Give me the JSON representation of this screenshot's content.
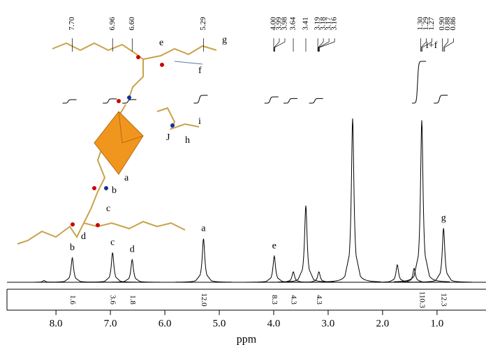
{
  "chart_data": {
    "type": "nmr",
    "x_label": "ppm",
    "xlim": [
      8.9,
      0.1
    ],
    "xticks": [
      {
        "value": 8,
        "label": "8.0"
      },
      {
        "value": 7,
        "label": "7.0"
      },
      {
        "value": 6,
        "label": "6.0"
      },
      {
        "value": 5,
        "label": "5.0"
      },
      {
        "value": 4,
        "label": "4.0"
      },
      {
        "value": 3,
        "label": "3.0"
      },
      {
        "value": 2,
        "label": "2.0"
      },
      {
        "value": 1,
        "label": "1.0"
      }
    ],
    "ylim": [
      0,
      100
    ],
    "color": "#000000",
    "peak_labels": [
      {
        "value": 7.7,
        "label": "7.70"
      },
      6.96,
      {
        "value": 6.6,
        "label": "6.60"
      },
      5.29,
      {
        "value": 4,
        "label": "4.00"
      },
      3.99,
      3.98,
      3.64,
      3.41,
      3.19,
      3.18,
      3.17,
      3.16,
      {
        "value": 1.3,
        "label": "1.30"
      },
      1.29,
      1.27,
      {
        "value": 0.9,
        "label": "0.90"
      },
      0.88,
      0.86
    ],
    "peaks": [
      {
        "ppm": 8.22,
        "height": 1
      },
      {
        "ppm": 7.7,
        "height": 14,
        "assignment": "b",
        "integral": 1.6
      },
      {
        "ppm": 6.96,
        "height": 17,
        "assignment": "c",
        "integral": 3.6
      },
      {
        "ppm": 6.6,
        "height": 13,
        "assignment": "d",
        "integral": 1.8
      },
      {
        "ppm": 5.29,
        "height": 25,
        "assignment": "a",
        "integral": {
          "value": 12,
          "label": "12.0"
        }
      },
      {
        "ppm": 3.99,
        "height": 15,
        "assignment": "e",
        "integral": 8.3
      },
      {
        "ppm": 3.64,
        "height": 6,
        "integral": 4.3
      },
      {
        "ppm": 3.41,
        "height": 44
      },
      {
        "ppm": 3.17,
        "height": 6,
        "integral": 4.3
      },
      {
        "ppm": 2.55,
        "height": 94
      },
      {
        "ppm": 1.73,
        "height": 10
      },
      {
        "ppm": 1.42,
        "height": 8
      },
      {
        "ppm": 1.28,
        "height": 93,
        "assignment": "i+f",
        "integral": 110.3
      },
      {
        "ppm": 0.88,
        "height": 31,
        "assignment": "g",
        "integral": 12.3
      }
    ],
    "structure_labels": [
      "e",
      "g",
      "f",
      "i",
      "J",
      "h",
      "a",
      "b",
      "c",
      "d"
    ]
  }
}
